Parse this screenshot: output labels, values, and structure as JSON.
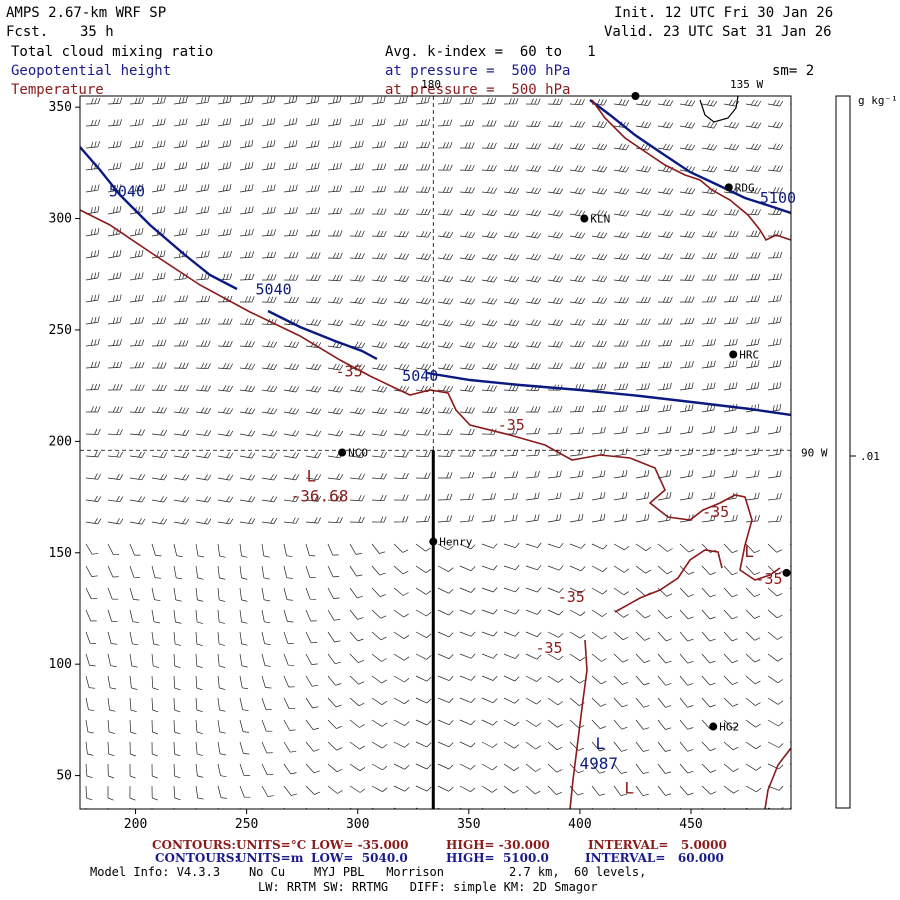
{
  "header": {
    "model": "AMPS 2.67-km WRF SP",
    "fcst_label": "Fcst.",
    "fcst_value": "35 h",
    "init": "Init. 12 UTC Fri 30 Jan 26",
    "valid": "Valid. 23 UTC Sat 31 Jan 26",
    "var1": "Total cloud mixing ratio",
    "var2": "Geopotential height",
    "var3": "Temperature",
    "avg": "Avg. k-index =  60 to   1",
    "pres1": "at pressure =  500 hPa",
    "pres2": "at pressure =  500 hPa",
    "sm": "sm= 2"
  },
  "colorbar": {
    "unit": "g kg⁻¹",
    "tick": ".01"
  },
  "chart_data": {
    "type": "contour",
    "xlim": [
      175,
      495
    ],
    "ylim": [
      35,
      355
    ],
    "x_ticks": [
      200,
      250,
      300,
      350,
      400,
      450
    ],
    "y_ticks": [
      50,
      100,
      150,
      200,
      250,
      300,
      350
    ],
    "meridian_labels": [
      {
        "text": "180",
        "x": 333,
        "y": 355
      },
      {
        "text": "135 W",
        "x": 475,
        "y": 355
      },
      {
        "text": "90 W",
        "x": 495,
        "y": 195
      }
    ],
    "stations": [
      {
        "name": "KLN",
        "x": 402,
        "y": 300
      },
      {
        "name": "HRC",
        "x": 469,
        "y": 239
      },
      {
        "name": "NCO",
        "x": 293,
        "y": 195
      },
      {
        "name": "Henry",
        "x": 334,
        "y": 155
      },
      {
        "name": "HG2",
        "x": 460,
        "y": 72
      },
      {
        "name": "RDG",
        "x": 467,
        "y": 314
      },
      {
        "name": "",
        "x": 425,
        "y": 355
      },
      {
        "name": "",
        "x": 493,
        "y": 141
      }
    ],
    "height_contour_labels": [
      {
        "text": "5040",
        "x": 188,
        "y": 310
      },
      {
        "text": "5040",
        "x": 254,
        "y": 266
      },
      {
        "text": "5040",
        "x": 320,
        "y": 227
      },
      {
        "text": "5100",
        "x": 481,
        "y": 307
      }
    ],
    "temp_contour_labels": [
      {
        "text": "-35",
        "x": 290,
        "y": 229
      },
      {
        "text": "-35",
        "x": 363,
        "y": 205
      },
      {
        "text": "-35",
        "x": 455,
        "y": 166
      },
      {
        "text": "-35",
        "x": 479,
        "y": 136
      },
      {
        "text": "-35",
        "x": 390,
        "y": 128
      },
      {
        "text": "-35",
        "x": 380,
        "y": 105
      }
    ],
    "lows": [
      {
        "label": "L",
        "value": "-36.68",
        "series": "temperature",
        "x": 277,
        "y": 182
      },
      {
        "label": "L",
        "value": "4987",
        "series": "height",
        "x": 407,
        "y": 62
      },
      {
        "label": "L",
        "value": "",
        "series": "temperature",
        "x": 474,
        "y": 148
      },
      {
        "label": "L",
        "value": "",
        "series": "temperature",
        "x": 420,
        "y": 42
      }
    ],
    "cross_section_x": 334,
    "cross_section_y": 196,
    "height_contours": {
      "low": "5040.0",
      "high": "5100.0",
      "interval": "60.000",
      "units": "m"
    },
    "temperature_contours": {
      "low": "-35.000",
      "high": "-30.000",
      "interval": "5.0000",
      "units": "°C"
    }
  },
  "footer": {
    "contours_label": "CONTOURS:",
    "red_units": "UNITS=°C",
    "red_low": "LOW= -35.000",
    "red_high": "HIGH= -30.000",
    "red_int": "INTERVAL=   5.0000",
    "blue_units": "UNITS=m",
    "blue_low": "LOW=  5040.0",
    "blue_high": "HIGH=  5100.0",
    "blue_int": "INTERVAL=   60.000",
    "model_info": "Model Info: V4.3.3    No Cu    MYJ PBL   Morrison         2.7 km,  60 levels,",
    "model_info2": "LW: RRTM SW: RRTMG   DIFF: simple KM: 2D Smagor"
  },
  "colors": {
    "height": "#0a1a80",
    "temperature": "#8b1a1a",
    "text_blue": "#1a1a8c",
    "text_red": "#8b1a1a"
  }
}
